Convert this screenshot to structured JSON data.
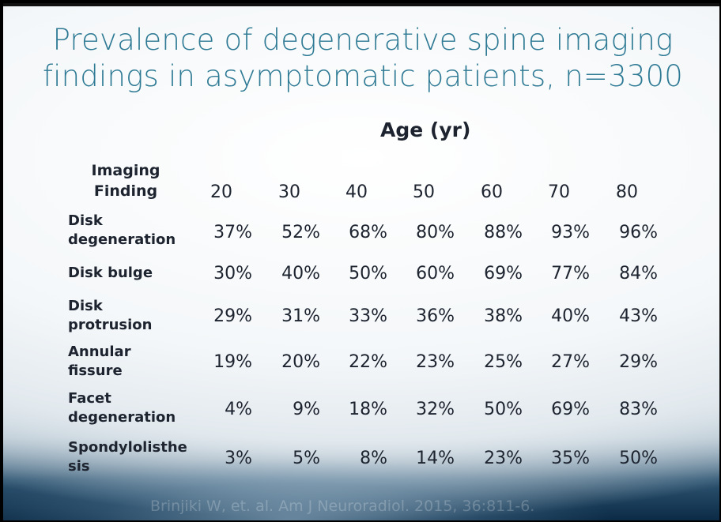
{
  "title_line1": "Prevalence of  degenerative spine imaging",
  "title_line2": "findings in asymptomatic patients, n=3300",
  "age_header": "Age (yr)",
  "finding_header_line1": "Imaging",
  "finding_header_line2": "Finding",
  "ages": [
    "20",
    "30",
    "40",
    "50",
    "60",
    "70",
    "80"
  ],
  "rows": [
    {
      "label1": "Disk",
      "label2": "degeneration",
      "values": [
        "37%",
        "52%",
        "68%",
        "80%",
        "88%",
        "93%",
        "96%"
      ]
    },
    {
      "label1": "Disk bulge",
      "label2": "",
      "values": [
        "30%",
        "40%",
        "50%",
        "60%",
        "69%",
        "77%",
        "84%"
      ]
    },
    {
      "label1": "Disk",
      "label2": "protrusion",
      "values": [
        "29%",
        "31%",
        "33%",
        "36%",
        "38%",
        "40%",
        "43%"
      ]
    },
    {
      "label1": "Annular",
      "label2": "fissure",
      "values": [
        "19%",
        "20%",
        "22%",
        "23%",
        "25%",
        "27%",
        "29%"
      ]
    },
    {
      "label1": "Facet",
      "label2": "degeneration",
      "values": [
        "4%",
        "9%",
        "18%",
        "32%",
        "50%",
        "69%",
        "83%"
      ]
    },
    {
      "label1": "Spondylolisthe",
      "label2": "sis",
      "values": [
        "3%",
        "5%",
        "8%",
        "14%",
        "23%",
        "35%",
        "50%"
      ]
    }
  ],
  "citation": "Brinjiki W, et. al. Am J Neuroradiol. 2015, 36:811-6."
}
